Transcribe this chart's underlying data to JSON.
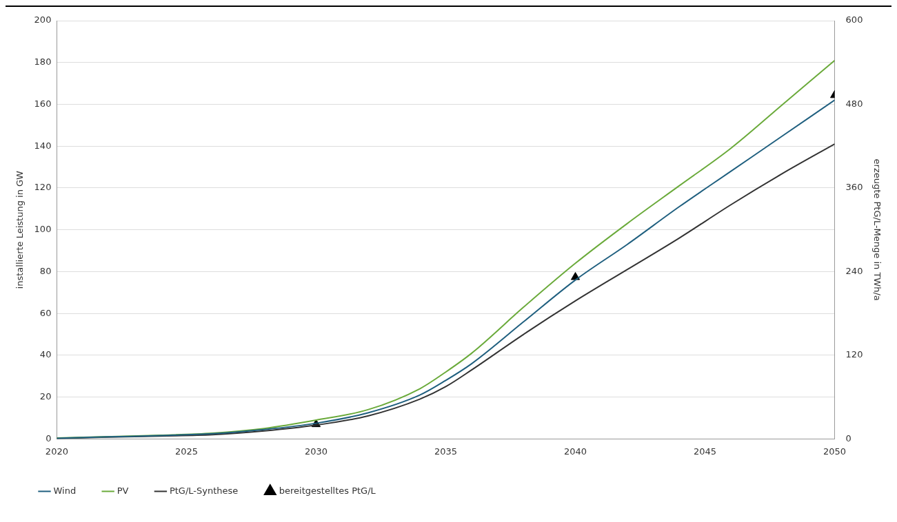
{
  "chart_data": {
    "type": "line",
    "xlabel": null,
    "ylabel": "installierte Leistung in GW",
    "y2label": "erzeugte PtG/L-Menge in TWh/a",
    "x": [
      2020,
      2022,
      2024,
      2026,
      2028,
      2030,
      2032,
      2034,
      2035,
      2036,
      2038,
      2040,
      2042,
      2044,
      2046,
      2048,
      2050
    ],
    "series": [
      {
        "name": "Wind",
        "color": "#1f5f7f",
        "marker": "none",
        "values": [
          0.3,
          1,
          1.6,
          2.5,
          4.5,
          7.5,
          12.5,
          21,
          28,
          36,
          56,
          76,
          93,
          111,
          128,
          145,
          162
        ]
      },
      {
        "name": "PV",
        "color": "#6aaa3a",
        "marker": "none",
        "values": [
          0.5,
          1.1,
          1.8,
          2.8,
          5,
          9,
          14,
          24,
          32,
          41,
          63,
          84,
          103,
          121,
          139,
          160,
          181
        ]
      },
      {
        "name": "PtG/L-Synthese",
        "color": "#333333",
        "marker": "none",
        "values": [
          0.3,
          0.9,
          1.4,
          2,
          3.8,
          6.6,
          11,
          19,
          25,
          33,
          50,
          66,
          81,
          96,
          112,
          127,
          141
        ]
      },
      {
        "name": "bereitgestelltes PtG/L",
        "type": "scatter",
        "axis": "y2",
        "color": "#000000",
        "marker": "triangle",
        "x": [
          2030,
          2040,
          2050
        ],
        "values": [
          21,
          232,
          493
        ]
      }
    ],
    "xlim": [
      2020,
      2050
    ],
    "xticks": [
      2020,
      2025,
      2030,
      2035,
      2040,
      2045,
      2050
    ],
    "ylim": [
      0,
      200
    ],
    "yticks": [
      0,
      20,
      40,
      60,
      80,
      100,
      120,
      140,
      160,
      180,
      200
    ],
    "y2lim": [
      0,
      600
    ],
    "y2ticks": [
      0,
      120,
      240,
      360,
      480,
      600
    ],
    "grid": "y",
    "legend": "bottom",
    "line_style": "solid"
  }
}
